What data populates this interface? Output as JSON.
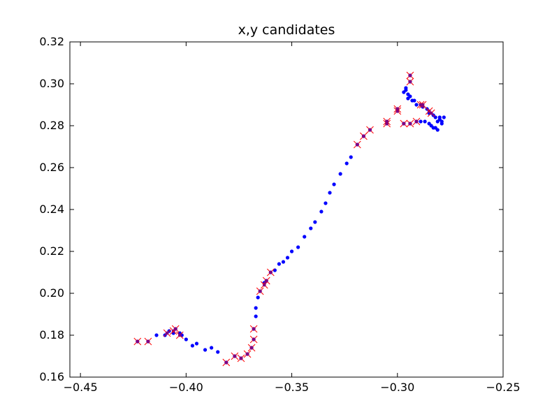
{
  "chart_data": {
    "type": "scatter",
    "title": "x,y candidates",
    "xlabel": "",
    "ylabel": "",
    "xlim": [
      -0.455,
      -0.25
    ],
    "ylim": [
      0.16,
      0.32
    ],
    "x_ticks": [
      -0.45,
      -0.4,
      -0.35,
      -0.3,
      -0.25
    ],
    "x_tick_labels": [
      "−0.45",
      "−0.40",
      "−0.35",
      "−0.30",
      "−0.25"
    ],
    "y_ticks": [
      0.16,
      0.18,
      0.2,
      0.22,
      0.24,
      0.26,
      0.28,
      0.3,
      0.32
    ],
    "y_tick_labels": [
      "0.16",
      "0.18",
      "0.20",
      "0.22",
      "0.24",
      "0.26",
      "0.28",
      "0.30",
      "0.32"
    ],
    "grid": false,
    "colors": {
      "points": "#0000ff",
      "markers": "#ff0000"
    },
    "series": [
      {
        "marker": "dot",
        "points": [
          [
            -0.423,
            0.177
          ],
          [
            -0.418,
            0.177
          ],
          [
            -0.414,
            0.18
          ],
          [
            -0.41,
            0.18
          ],
          [
            -0.408,
            0.182
          ],
          [
            -0.406,
            0.181
          ],
          [
            -0.405,
            0.183
          ],
          [
            -0.403,
            0.181
          ],
          [
            -0.402,
            0.18
          ],
          [
            -0.4,
            0.178
          ],
          [
            -0.397,
            0.175
          ],
          [
            -0.395,
            0.176
          ],
          [
            -0.391,
            0.173
          ],
          [
            -0.388,
            0.174
          ],
          [
            -0.385,
            0.172
          ],
          [
            -0.381,
            0.167
          ],
          [
            -0.377,
            0.17
          ],
          [
            -0.374,
            0.169
          ],
          [
            -0.371,
            0.171
          ],
          [
            -0.369,
            0.174
          ],
          [
            -0.368,
            0.178
          ],
          [
            -0.368,
            0.183
          ],
          [
            -0.367,
            0.189
          ],
          [
            -0.367,
            0.193
          ],
          [
            -0.366,
            0.198
          ],
          [
            -0.365,
            0.201
          ],
          [
            -0.363,
            0.205
          ],
          [
            -0.362,
            0.206
          ],
          [
            -0.36,
            0.21
          ],
          [
            -0.358,
            0.211
          ],
          [
            -0.356,
            0.214
          ],
          [
            -0.354,
            0.215
          ],
          [
            -0.352,
            0.217
          ],
          [
            -0.35,
            0.22
          ],
          [
            -0.347,
            0.222
          ],
          [
            -0.344,
            0.227
          ],
          [
            -0.341,
            0.231
          ],
          [
            -0.339,
            0.234
          ],
          [
            -0.336,
            0.239
          ],
          [
            -0.334,
            0.243
          ],
          [
            -0.332,
            0.248
          ],
          [
            -0.33,
            0.252
          ],
          [
            -0.327,
            0.257
          ],
          [
            -0.324,
            0.262
          ],
          [
            -0.322,
            0.265
          ],
          [
            -0.319,
            0.271
          ],
          [
            -0.316,
            0.275
          ],
          [
            -0.313,
            0.278
          ],
          [
            -0.305,
            0.281
          ],
          [
            -0.305,
            0.282
          ],
          [
            -0.3,
            0.287
          ],
          [
            -0.3,
            0.288
          ],
          [
            -0.297,
            0.281
          ],
          [
            -0.294,
            0.281
          ],
          [
            -0.297,
            0.296
          ],
          [
            -0.296,
            0.297
          ],
          [
            -0.296,
            0.298
          ],
          [
            -0.295,
            0.295
          ],
          [
            -0.295,
            0.293
          ],
          [
            -0.294,
            0.294
          ],
          [
            -0.293,
            0.292
          ],
          [
            -0.292,
            0.292
          ],
          [
            -0.291,
            0.29
          ],
          [
            -0.289,
            0.29
          ],
          [
            -0.288,
            0.289
          ],
          [
            -0.286,
            0.288
          ],
          [
            -0.285,
            0.286
          ],
          [
            -0.283,
            0.285
          ],
          [
            -0.282,
            0.284
          ],
          [
            -0.28,
            0.284
          ],
          [
            -0.287,
            0.282
          ],
          [
            -0.289,
            0.282
          ],
          [
            -0.291,
            0.282
          ],
          [
            -0.285,
            0.281
          ],
          [
            -0.284,
            0.28
          ],
          [
            -0.283,
            0.279
          ],
          [
            -0.282,
            0.279
          ],
          [
            -0.281,
            0.278
          ],
          [
            -0.281,
            0.282
          ],
          [
            -0.28,
            0.283
          ],
          [
            -0.278,
            0.284
          ],
          [
            -0.279,
            0.281
          ],
          [
            -0.279,
            0.282
          ],
          [
            -0.294,
            0.301
          ],
          [
            -0.294,
            0.304
          ]
        ]
      },
      {
        "marker": "x",
        "points": [
          [
            -0.423,
            0.177
          ],
          [
            -0.418,
            0.177
          ],
          [
            -0.409,
            0.181
          ],
          [
            -0.406,
            0.182
          ],
          [
            -0.405,
            0.183
          ],
          [
            -0.403,
            0.18
          ],
          [
            -0.381,
            0.167
          ],
          [
            -0.377,
            0.17
          ],
          [
            -0.374,
            0.169
          ],
          [
            -0.371,
            0.171
          ],
          [
            -0.369,
            0.174
          ],
          [
            -0.368,
            0.178
          ],
          [
            -0.368,
            0.183
          ],
          [
            -0.365,
            0.201
          ],
          [
            -0.363,
            0.204
          ],
          [
            -0.362,
            0.206
          ],
          [
            -0.36,
            0.21
          ],
          [
            -0.319,
            0.271
          ],
          [
            -0.316,
            0.275
          ],
          [
            -0.313,
            0.278
          ],
          [
            -0.305,
            0.281
          ],
          [
            -0.305,
            0.282
          ],
          [
            -0.3,
            0.287
          ],
          [
            -0.3,
            0.288
          ],
          [
            -0.297,
            0.281
          ],
          [
            -0.294,
            0.281
          ],
          [
            -0.291,
            0.282
          ],
          [
            -0.289,
            0.29
          ],
          [
            -0.288,
            0.29
          ],
          [
            -0.285,
            0.287
          ],
          [
            -0.284,
            0.286
          ],
          [
            -0.294,
            0.301
          ],
          [
            -0.294,
            0.304
          ]
        ]
      }
    ]
  }
}
